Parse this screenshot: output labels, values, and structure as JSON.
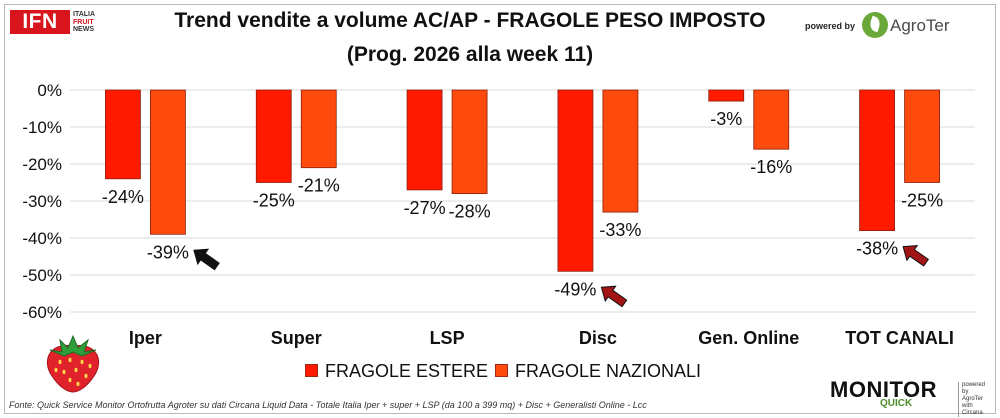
{
  "header": {
    "title": "Trend vendite a volume AC/AP - FRAGOLE PESO IMPOSTO",
    "subtitle": "(Prog. 2026 alla week 11)",
    "powered_by": "powered by",
    "sponsor": "AgroTer"
  },
  "logo": {
    "brand": "IFN",
    "tagline": [
      "ITALIA",
      "FRUIT",
      "NEWS"
    ]
  },
  "chart_data": {
    "type": "bar",
    "categories": [
      "Iper",
      "Super",
      "LSP",
      "Disc",
      "Gen. Online",
      "TOT CANALI"
    ],
    "series": [
      {
        "name": "FRAGOLE ESTERE",
        "values": [
          -24,
          -25,
          -27,
          -49,
          -3,
          -38
        ]
      },
      {
        "name": "FRAGOLE NAZIONALI",
        "values": [
          -39,
          -21,
          -28,
          -33,
          -16,
          -25
        ]
      }
    ],
    "data_labels": [
      [
        "-24%",
        "-25%",
        "-27%",
        "-49%",
        "-3%",
        "-38%"
      ],
      [
        "-39%",
        "-21%",
        "-28%",
        "-33%",
        "-16%",
        "-25%"
      ]
    ],
    "ylim": [
      -60,
      0
    ],
    "yticks": [
      0,
      -10,
      -20,
      -30,
      -40,
      -50,
      -60
    ],
    "ytick_labels": [
      "0%",
      "-10%",
      "-20%",
      "-30%",
      "-40%",
      "-50%",
      "-60%"
    ],
    "grid": true,
    "legend_position": "bottom",
    "colors": {
      "estere": "#ff1a00",
      "nazionali": "#ff4a0d",
      "bar_edge": "#8a1f0b",
      "grid": "#d9d9d9"
    },
    "arrows": [
      {
        "category": "Iper",
        "series": "FRAGOLE NAZIONALI",
        "color": "#111111"
      },
      {
        "category": "Disc",
        "series": "FRAGOLE ESTERE",
        "color": "#a31515"
      },
      {
        "category": "TOT CANALI",
        "series": "FRAGOLE ESTERE",
        "color": "#a31515"
      }
    ]
  },
  "footer": {
    "source": "Fonte: Quick Service Monitor Ortofrutta Agroter su dati Circana Liquid Data - Totale Italia Iper + super + LSP (da 100 a 399 mq) + Disc + Generalisti Online - Lcc",
    "brand_main": "MONITOR",
    "brand_sub": "QUICK",
    "brand_powered": [
      "powered by",
      "AgroTer",
      "with",
      "Circana"
    ]
  },
  "icons": [
    "strawberry-icon",
    "agroter-leaf-icon",
    "arrow-icon"
  ]
}
